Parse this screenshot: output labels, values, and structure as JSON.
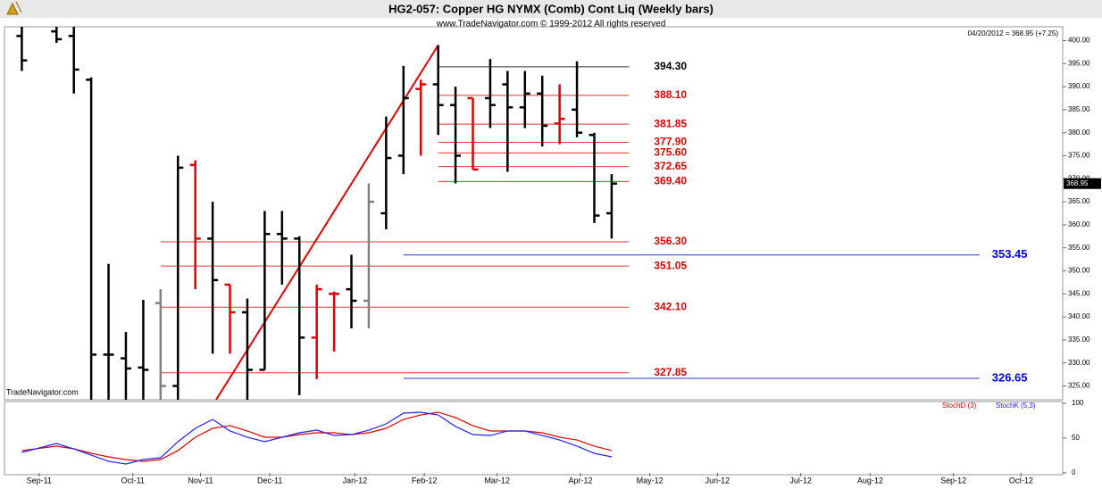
{
  "chart_data": [
    {
      "type": "ohlc",
      "title": "HG2-057:  Copper HG NYMX (Comb) Cont Liq  (Weekly bars)",
      "subtitle": "www.TradeNavigator.com © 1999-2012 All rights reserved",
      "last_quote": "04/20/2012 = 368.95 (+7.25)",
      "last_value": {
        "value": 368.95,
        "label": "368.95"
      },
      "watermark": "TradeNavigator.com",
      "x": [
        0,
        2,
        3,
        4,
        5,
        6,
        7,
        8,
        9,
        10,
        11,
        12,
        13,
        14,
        15,
        16,
        17,
        18,
        19,
        20,
        21,
        22,
        23,
        24,
        25,
        26,
        27,
        28,
        29,
        30,
        31,
        32,
        33,
        34
      ],
      "open": [
        401,
        402,
        401,
        391.5,
        331.8,
        331,
        329,
        343,
        325,
        373,
        357,
        347,
        341,
        328.5,
        358,
        357,
        335.5,
        345,
        346,
        343.5,
        362.5,
        375,
        389.5,
        390.5,
        386,
        387.5,
        387.5,
        390.5,
        385.5,
        388.5,
        382,
        385,
        379.5,
        362.5
      ],
      "high": [
        404,
        405,
        404,
        392,
        351.5,
        336.7,
        343.7,
        346,
        375,
        374,
        365,
        347,
        344,
        363,
        363,
        357.5,
        347,
        345.5,
        353.5,
        369,
        383.5,
        394.5,
        391.5,
        399,
        390,
        387.5,
        396,
        393.4,
        393.4,
        392.4,
        390.5,
        395.5,
        380,
        371
      ],
      "low": [
        393.4,
        399.5,
        388.5,
        318,
        320,
        320,
        320,
        320,
        320,
        346,
        332,
        332,
        320,
        328.5,
        347,
        323,
        326.5,
        332.5,
        337.5,
        337.5,
        359,
        371,
        375,
        379.5,
        369,
        372,
        381,
        371.5,
        381,
        377,
        377.5,
        379,
        360.4,
        357
      ],
      "close": [
        395.7,
        400.3,
        393.7,
        331.8,
        331.8,
        328.8,
        328.5,
        325,
        372.4,
        357,
        348,
        341,
        328.5,
        358,
        357,
        335.5,
        346,
        345,
        343.5,
        365,
        374.5,
        387.5,
        390.5,
        386,
        375,
        372,
        386,
        385.5,
        388.5,
        381.5,
        383,
        380,
        362,
        368.95
      ],
      "colors": [
        "#000",
        "#000",
        "#000",
        "#000",
        "#000",
        "#000",
        "#000",
        "#808080",
        "#000",
        "#e00000",
        "#000",
        "#e00000",
        "#000",
        "#000",
        "#000",
        "#000",
        "#e00000",
        "#e00000",
        "#000",
        "#808080",
        "#000",
        "#000",
        "#e00000",
        "#000",
        "#000",
        "#e00000",
        "#000",
        "#000",
        "#000",
        "#000",
        "#e00000",
        "#000",
        "#000",
        "#000"
      ],
      "levels": [
        {
          "value": 394.3,
          "label": "394.30",
          "color": "#000000",
          "from": 24,
          "to": 35
        },
        {
          "value": 388.1,
          "label": "388.10",
          "color": "#e00000",
          "from": 24,
          "to": 35
        },
        {
          "value": 381.85,
          "label": "381.85",
          "color": "#e00000",
          "from": 24,
          "to": 35
        },
        {
          "value": 377.9,
          "label": "377.90",
          "color": "#e00000",
          "from": 24,
          "to": 35
        },
        {
          "value": 375.6,
          "label": "375.60",
          "color": "#e00000",
          "from": 24,
          "to": 35
        },
        {
          "value": 372.65,
          "label": "372.65",
          "color": "#e00000",
          "from": 24,
          "to": 35
        },
        {
          "value": 369.4,
          "label": "369.40",
          "color": "#e00000",
          "from": 24,
          "to": 35
        },
        {
          "value": 356.3,
          "label": "356.30",
          "color": "#e00000",
          "from": 8,
          "to": 35
        },
        {
          "value": 351.05,
          "label": "351.05",
          "color": "#e00000",
          "from": 8,
          "to": 35
        },
        {
          "value": 342.1,
          "label": "342.10",
          "color": "#e00000",
          "from": 8,
          "to": 35
        },
        {
          "value": 327.85,
          "label": "327.85",
          "color": "#e00000",
          "from": 8,
          "to": 35
        },
        {
          "value": 353.45,
          "label": "353.45",
          "color": "#0000e0",
          "from": 22,
          "to": 55.2
        },
        {
          "value": 326.65,
          "label": "326.65",
          "color": "#0000e0",
          "from": 22,
          "to": 55.2
        }
      ],
      "trendline": {
        "x": [
          11.2,
          24
        ],
        "values": [
          322,
          399
        ],
        "color": "#e00000"
      },
      "xlim": [
        -1,
        60
      ],
      "ylim": [
        322,
        403
      ],
      "yticks": [
        {
          "value": 400,
          "label": "400.00"
        },
        {
          "value": 395,
          "label": "395.00"
        },
        {
          "value": 390,
          "label": "390.00"
        },
        {
          "value": 385,
          "label": "385.00"
        },
        {
          "value": 380,
          "label": "380.00"
        },
        {
          "value": 375,
          "label": "375.00"
        },
        {
          "value": 370,
          "label": "370.00"
        },
        {
          "value": 365,
          "label": "365.00"
        },
        {
          "value": 360,
          "label": "360.00"
        },
        {
          "value": 355,
          "label": "355.00"
        },
        {
          "value": 350,
          "label": "350.00"
        },
        {
          "value": 345,
          "label": "345.00"
        },
        {
          "value": 340,
          "label": "340.00"
        },
        {
          "value": 335,
          "label": "335.00"
        },
        {
          "value": 330,
          "label": "330.00"
        },
        {
          "value": 325,
          "label": "325.00"
        }
      ]
    },
    {
      "type": "line",
      "x": [
        0,
        2,
        3,
        4,
        5,
        6,
        7,
        8,
        9,
        10,
        11,
        12,
        13,
        14,
        15,
        16,
        17,
        18,
        19,
        20,
        21,
        22,
        23,
        24,
        25,
        26,
        27,
        28,
        29,
        30,
        31,
        32,
        33,
        34
      ],
      "series": [
        {
          "name": "StochD (3)",
          "color": "#e00000",
          "values": [
            32.1,
            38.5,
            34.6,
            28.2,
            23.1,
            19.2,
            16.7,
            19.2,
            32.1,
            51.3,
            64.1,
            67.9,
            60.3,
            51.3,
            51.3,
            55.1,
            57.7,
            57.7,
            55.1,
            57.7,
            64.1,
            76.9,
            83.3,
            87.2,
            79.5,
            67.9,
            60.3,
            60.3,
            60.3,
            57.7,
            51.3,
            47.4,
            38.5,
            32.1
          ]
        },
        {
          "name": "StochK (5,3)",
          "color": "#2020ff",
          "values": [
            29.5,
            42.3,
            34.6,
            25.6,
            16.7,
            12.8,
            19.2,
            21.8,
            44.9,
            64.1,
            76.9,
            60.3,
            51.3,
            44.9,
            51.3,
            57.7,
            61.5,
            53.8,
            55.1,
            61.5,
            70.5,
            85.9,
            87.2,
            83.3,
            66.7,
            55.1,
            53.8,
            60.3,
            60.3,
            53.8,
            47.4,
            38.5,
            28.2,
            23.1
          ]
        }
      ],
      "xlim": [
        -1,
        60
      ],
      "xticks": [
        {
          "value": 1,
          "label": "Sep-11"
        },
        {
          "value": 6.4,
          "label": "Oct-11"
        },
        {
          "value": 10.3,
          "label": "Nov-11"
        },
        {
          "value": 14.3,
          "label": "Dec-11"
        },
        {
          "value": 19.2,
          "label": "Jan-12"
        },
        {
          "value": 23.2,
          "label": "Feb-12"
        },
        {
          "value": 27.4,
          "label": "Mar-12"
        },
        {
          "value": 32.2,
          "label": "Apr-12"
        },
        {
          "value": 36.2,
          "label": "May-12"
        },
        {
          "value": 40.1,
          "label": "Jun-12"
        },
        {
          "value": 44.9,
          "label": "Jul-12"
        },
        {
          "value": 48.9,
          "label": "Aug-12"
        },
        {
          "value": 53.7,
          "label": "Sep-12"
        },
        {
          "value": 57.6,
          "label": "Oct-12"
        }
      ],
      "ylim": [
        0,
        100
      ],
      "yticks": [
        100,
        50,
        0
      ]
    }
  ]
}
